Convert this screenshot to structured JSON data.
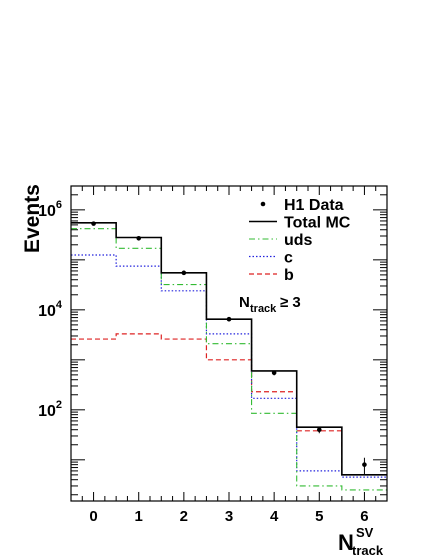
{
  "chart_data": {
    "type": "histogram",
    "ylabel": "Events",
    "xlabel_main": "N",
    "xlabel_sup": "SV",
    "xlabel_sub": "track",
    "yscale": "log",
    "ylim": [
      1.5,
      3000000
    ],
    "xlim": [
      -0.5,
      6.5
    ],
    "x_ticks": [
      "0",
      "1",
      "2",
      "3",
      "4",
      "5",
      "6"
    ],
    "y_ticks": [
      {
        "base": "10",
        "exp": "2",
        "value": 100
      },
      {
        "base": "10",
        "exp": "4",
        "value": 10000
      },
      {
        "base": "10",
        "exp": "6",
        "value": 1000000
      }
    ],
    "bin_edges": [
      -0.5,
      0.5,
      1.5,
      2.5,
      3.5,
      4.5,
      5.5,
      6.5
    ],
    "series": [
      {
        "name": "H1 Data",
        "style": "points",
        "color": "#000000",
        "values": [
          530000,
          270000,
          55000,
          6500,
          550,
          40,
          8
        ],
        "errors": [
          0,
          0,
          0,
          0,
          60,
          6,
          3
        ]
      },
      {
        "name": "Total MC",
        "style": "solid",
        "color": "#000000",
        "values": [
          550000,
          280000,
          55000,
          6500,
          600,
          45,
          5
        ]
      },
      {
        "name": "uds",
        "style": "dashdot",
        "color": "#33bb33",
        "values": [
          420000,
          170000,
          32000,
          2100,
          85,
          3,
          2.5
        ]
      },
      {
        "name": "c",
        "style": "dotted",
        "color": "#2222dd",
        "values": [
          125000,
          75000,
          24000,
          3300,
          170,
          6,
          4.5
        ]
      },
      {
        "name": "b",
        "style": "dashed",
        "color": "#dd2222",
        "values": [
          2600,
          3300,
          2600,
          1000,
          230,
          38,
          5
        ]
      }
    ],
    "annotation": {
      "main": "N",
      "sub": "track",
      "rest": "≥ 3"
    },
    "legend_position": "top-right"
  }
}
